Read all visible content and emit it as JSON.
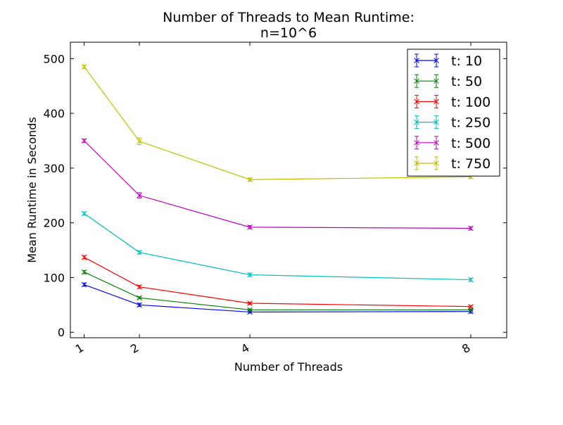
{
  "chart_data": {
    "type": "line",
    "title_line1": "Number of Threads to Mean Runtime:",
    "title_line2": "n=10^6",
    "xlabel": "Number of Threads",
    "ylabel": "Mean Runtime in Seconds",
    "x": [
      1,
      2,
      4,
      8
    ],
    "x_tick_labels": [
      "1",
      "2",
      "4",
      "8"
    ],
    "y_ticks": [
      0,
      100,
      200,
      300,
      400,
      500
    ],
    "y_tick_labels": [
      "0",
      "100",
      "200",
      "300",
      "400",
      "500"
    ],
    "xlim": [
      0.75,
      8.65
    ],
    "ylim": [
      -10,
      530
    ],
    "legend_position": "top-right",
    "grid": false,
    "series": [
      {
        "name": "t: 10",
        "color": "#0000ff",
        "values": [
          87,
          50,
          37,
          38
        ],
        "err": [
          3,
          3,
          2,
          3
        ]
      },
      {
        "name": "t: 50",
        "color": "#008000",
        "values": [
          110,
          63,
          41,
          41
        ],
        "err": [
          3,
          2,
          2,
          2
        ]
      },
      {
        "name": "t: 100",
        "color": "#ff0000",
        "values": [
          137,
          83,
          53,
          47
        ],
        "err": [
          3,
          3,
          2,
          2
        ]
      },
      {
        "name": "t: 250",
        "color": "#00bfbf",
        "values": [
          217,
          146,
          105,
          96
        ],
        "err": [
          3,
          3,
          3,
          3
        ]
      },
      {
        "name": "t: 500",
        "color": "#bf00bf",
        "values": [
          350,
          250,
          192,
          190
        ],
        "err": [
          3,
          5,
          3,
          3
        ]
      },
      {
        "name": "t: 750",
        "color": "#bfbf00",
        "values": [
          485,
          349,
          279,
          284
        ],
        "err": [
          3,
          6,
          3,
          3
        ]
      }
    ]
  }
}
